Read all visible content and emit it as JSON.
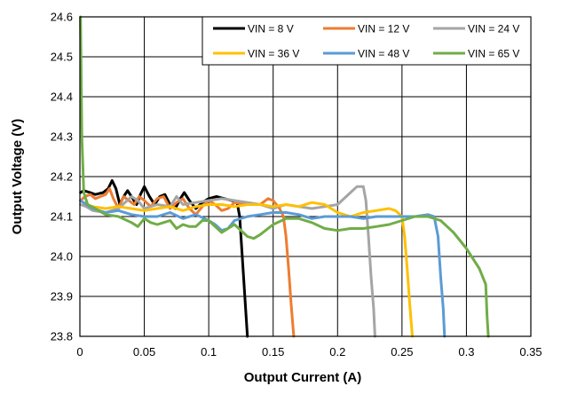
{
  "chart_data": {
    "type": "line",
    "title": "",
    "xlabel": "Output Current (A)",
    "ylabel": "Output Voltage (V)",
    "xlim": [
      0,
      0.35
    ],
    "ylim": [
      23.8,
      24.6
    ],
    "xticks": [
      0,
      0.05,
      0.1,
      0.15,
      0.2,
      0.25,
      0.3,
      0.35
    ],
    "xtick_labels": [
      "0",
      "0.05",
      "0.1",
      "0.15",
      "0.2",
      "0.25",
      "0.3",
      "0.35"
    ],
    "yticks": [
      23.8,
      23.9,
      24.0,
      24.1,
      24.2,
      24.3,
      24.4,
      24.5,
      24.6
    ],
    "ytick_labels": [
      "23.8",
      "23.9",
      "24.0",
      "24.1",
      "24.2",
      "24.3",
      "24.4",
      "24.5",
      "24.6"
    ],
    "grid": true,
    "legend_position": "top-right",
    "series": [
      {
        "name": "VIN = 8 V",
        "color": "#000000",
        "points": [
          [
            0.0005,
            24.16
          ],
          [
            0.003,
            24.165
          ],
          [
            0.008,
            24.16
          ],
          [
            0.012,
            24.155
          ],
          [
            0.018,
            24.16
          ],
          [
            0.022,
            24.17
          ],
          [
            0.025,
            24.19
          ],
          [
            0.028,
            24.17
          ],
          [
            0.031,
            24.13
          ],
          [
            0.034,
            24.15
          ],
          [
            0.037,
            24.165
          ],
          [
            0.04,
            24.15
          ],
          [
            0.044,
            24.13
          ],
          [
            0.047,
            24.155
          ],
          [
            0.05,
            24.175
          ],
          [
            0.054,
            24.15
          ],
          [
            0.058,
            24.13
          ],
          [
            0.062,
            24.15
          ],
          [
            0.066,
            24.155
          ],
          [
            0.07,
            24.13
          ],
          [
            0.074,
            24.12
          ],
          [
            0.078,
            24.145
          ],
          [
            0.081,
            24.16
          ],
          [
            0.085,
            24.14
          ],
          [
            0.09,
            24.12
          ],
          [
            0.095,
            24.135
          ],
          [
            0.1,
            24.145
          ],
          [
            0.106,
            24.15
          ],
          [
            0.112,
            24.145
          ],
          [
            0.118,
            24.14
          ],
          [
            0.122,
            24.135
          ],
          [
            0.124,
            24.1
          ],
          [
            0.126,
            24.0
          ],
          [
            0.128,
            23.9
          ],
          [
            0.13,
            23.8
          ]
        ]
      },
      {
        "name": "VIN = 12 V",
        "color": "#ED7D31",
        "points": [
          [
            0.0005,
            24.14
          ],
          [
            0.004,
            24.15
          ],
          [
            0.008,
            24.155
          ],
          [
            0.012,
            24.145
          ],
          [
            0.016,
            24.15
          ],
          [
            0.02,
            24.155
          ],
          [
            0.023,
            24.17
          ],
          [
            0.026,
            24.145
          ],
          [
            0.03,
            24.12
          ],
          [
            0.034,
            24.15
          ],
          [
            0.038,
            24.14
          ],
          [
            0.042,
            24.13
          ],
          [
            0.046,
            24.15
          ],
          [
            0.05,
            24.14
          ],
          [
            0.055,
            24.125
          ],
          [
            0.06,
            24.145
          ],
          [
            0.065,
            24.15
          ],
          [
            0.07,
            24.12
          ],
          [
            0.075,
            24.135
          ],
          [
            0.08,
            24.145
          ],
          [
            0.085,
            24.12
          ],
          [
            0.09,
            24.105
          ],
          [
            0.095,
            24.125
          ],
          [
            0.1,
            24.14
          ],
          [
            0.105,
            24.13
          ],
          [
            0.11,
            24.115
          ],
          [
            0.115,
            24.12
          ],
          [
            0.12,
            24.135
          ],
          [
            0.13,
            24.13
          ],
          [
            0.14,
            24.13
          ],
          [
            0.146,
            24.145
          ],
          [
            0.15,
            24.14
          ],
          [
            0.155,
            24.12
          ],
          [
            0.158,
            24.1
          ],
          [
            0.16,
            24.05
          ],
          [
            0.162,
            23.97
          ],
          [
            0.164,
            23.88
          ],
          [
            0.166,
            23.8
          ]
        ]
      },
      {
        "name": "VIN = 24 V",
        "color": "#A5A5A5",
        "points": [
          [
            0.0005,
            24.13
          ],
          [
            0.005,
            24.125
          ],
          [
            0.01,
            24.115
          ],
          [
            0.02,
            24.11
          ],
          [
            0.03,
            24.12
          ],
          [
            0.04,
            24.15
          ],
          [
            0.045,
            24.14
          ],
          [
            0.05,
            24.12
          ],
          [
            0.06,
            24.13
          ],
          [
            0.07,
            24.125
          ],
          [
            0.075,
            24.15
          ],
          [
            0.08,
            24.13
          ],
          [
            0.09,
            24.135
          ],
          [
            0.1,
            24.14
          ],
          [
            0.11,
            24.145
          ],
          [
            0.12,
            24.14
          ],
          [
            0.13,
            24.135
          ],
          [
            0.14,
            24.13
          ],
          [
            0.15,
            24.12
          ],
          [
            0.16,
            24.13
          ],
          [
            0.17,
            24.125
          ],
          [
            0.18,
            24.12
          ],
          [
            0.19,
            24.125
          ],
          [
            0.2,
            24.13
          ],
          [
            0.21,
            24.16
          ],
          [
            0.215,
            24.175
          ],
          [
            0.22,
            24.175
          ],
          [
            0.222,
            24.14
          ],
          [
            0.224,
            24.05
          ],
          [
            0.226,
            23.95
          ],
          [
            0.228,
            23.87
          ],
          [
            0.229,
            23.8
          ]
        ]
      },
      {
        "name": "VIN = 36 V",
        "color": "#FFC000",
        "points": [
          [
            0.0005,
            24.14
          ],
          [
            0.005,
            24.13
          ],
          [
            0.01,
            24.125
          ],
          [
            0.02,
            24.12
          ],
          [
            0.03,
            24.125
          ],
          [
            0.04,
            24.12
          ],
          [
            0.05,
            24.115
          ],
          [
            0.06,
            24.12
          ],
          [
            0.07,
            24.125
          ],
          [
            0.08,
            24.115
          ],
          [
            0.09,
            24.125
          ],
          [
            0.1,
            24.13
          ],
          [
            0.11,
            24.13
          ],
          [
            0.12,
            24.125
          ],
          [
            0.13,
            24.13
          ],
          [
            0.14,
            24.13
          ],
          [
            0.15,
            24.125
          ],
          [
            0.16,
            24.13
          ],
          [
            0.17,
            24.125
          ],
          [
            0.18,
            24.135
          ],
          [
            0.19,
            24.13
          ],
          [
            0.2,
            24.11
          ],
          [
            0.21,
            24.1
          ],
          [
            0.22,
            24.11
          ],
          [
            0.23,
            24.115
          ],
          [
            0.24,
            24.12
          ],
          [
            0.245,
            24.115
          ],
          [
            0.25,
            24.1
          ],
          [
            0.252,
            24.05
          ],
          [
            0.254,
            23.97
          ],
          [
            0.256,
            23.88
          ],
          [
            0.258,
            23.8
          ]
        ]
      },
      {
        "name": "VIN = 48 V",
        "color": "#5B9BD5",
        "points": [
          [
            0.0005,
            24.14
          ],
          [
            0.005,
            24.13
          ],
          [
            0.01,
            24.12
          ],
          [
            0.02,
            24.11
          ],
          [
            0.03,
            24.115
          ],
          [
            0.04,
            24.105
          ],
          [
            0.05,
            24.1
          ],
          [
            0.06,
            24.1
          ],
          [
            0.07,
            24.11
          ],
          [
            0.08,
            24.095
          ],
          [
            0.09,
            24.105
          ],
          [
            0.1,
            24.09
          ],
          [
            0.105,
            24.08
          ],
          [
            0.11,
            24.065
          ],
          [
            0.115,
            24.07
          ],
          [
            0.12,
            24.09
          ],
          [
            0.13,
            24.1
          ],
          [
            0.14,
            24.105
          ],
          [
            0.15,
            24.11
          ],
          [
            0.16,
            24.11
          ],
          [
            0.17,
            24.105
          ],
          [
            0.18,
            24.095
          ],
          [
            0.19,
            24.1
          ],
          [
            0.2,
            24.1
          ],
          [
            0.21,
            24.1
          ],
          [
            0.22,
            24.095
          ],
          [
            0.23,
            24.1
          ],
          [
            0.24,
            24.1
          ],
          [
            0.25,
            24.1
          ],
          [
            0.26,
            24.1
          ],
          [
            0.27,
            24.105
          ],
          [
            0.275,
            24.1
          ],
          [
            0.278,
            24.05
          ],
          [
            0.28,
            23.95
          ],
          [
            0.282,
            23.87
          ],
          [
            0.283,
            23.8
          ]
        ]
      },
      {
        "name": "VIN = 65 V",
        "color": "#70AD47",
        "points": [
          [
            0.0005,
            24.6
          ],
          [
            0.0015,
            24.3
          ],
          [
            0.003,
            24.16
          ],
          [
            0.006,
            24.13
          ],
          [
            0.012,
            24.12
          ],
          [
            0.02,
            24.105
          ],
          [
            0.03,
            24.1
          ],
          [
            0.04,
            24.085
          ],
          [
            0.045,
            24.075
          ],
          [
            0.05,
            24.095
          ],
          [
            0.055,
            24.085
          ],
          [
            0.06,
            24.08
          ],
          [
            0.065,
            24.085
          ],
          [
            0.07,
            24.09
          ],
          [
            0.075,
            24.07
          ],
          [
            0.08,
            24.08
          ],
          [
            0.085,
            24.075
          ],
          [
            0.09,
            24.075
          ],
          [
            0.095,
            24.09
          ],
          [
            0.1,
            24.09
          ],
          [
            0.105,
            24.075
          ],
          [
            0.11,
            24.06
          ],
          [
            0.115,
            24.07
          ],
          [
            0.12,
            24.08
          ],
          [
            0.13,
            24.05
          ],
          [
            0.135,
            24.045
          ],
          [
            0.14,
            24.055
          ],
          [
            0.15,
            24.08
          ],
          [
            0.16,
            24.095
          ],
          [
            0.17,
            24.095
          ],
          [
            0.18,
            24.085
          ],
          [
            0.19,
            24.07
          ],
          [
            0.2,
            24.065
          ],
          [
            0.21,
            24.07
          ],
          [
            0.22,
            24.07
          ],
          [
            0.23,
            24.075
          ],
          [
            0.24,
            24.08
          ],
          [
            0.25,
            24.09
          ],
          [
            0.26,
            24.1
          ],
          [
            0.27,
            24.1
          ],
          [
            0.28,
            24.09
          ],
          [
            0.29,
            24.06
          ],
          [
            0.3,
            24.02
          ],
          [
            0.31,
            23.97
          ],
          [
            0.315,
            23.93
          ],
          [
            0.316,
            23.85
          ],
          [
            0.317,
            23.8
          ]
        ]
      }
    ]
  }
}
